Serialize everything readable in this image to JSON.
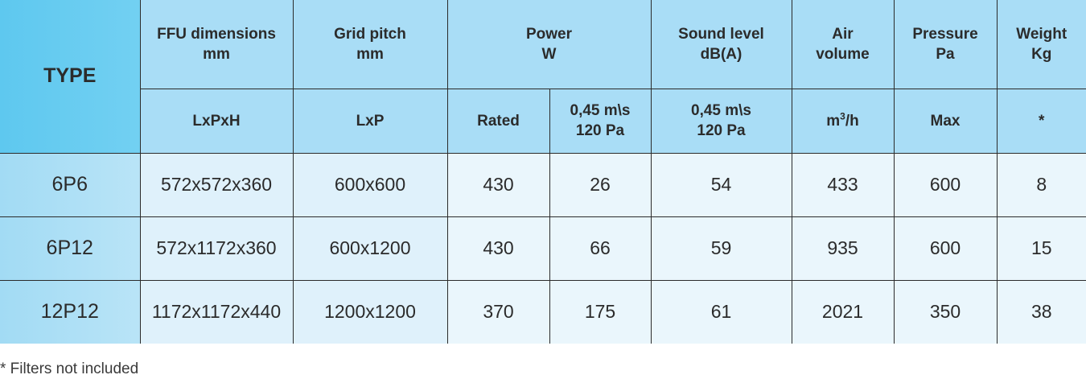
{
  "header": {
    "type_label": "TYPE",
    "dimensions": {
      "line1": "FFU dimensions",
      "line2": "mm"
    },
    "grid_pitch": {
      "line1": "Grid pitch",
      "line2": "mm"
    },
    "power": {
      "line1": "Power",
      "line2": "W"
    },
    "sound": {
      "line1": "Sound level",
      "line2": "dB(A)"
    },
    "air": {
      "line1": "Air",
      "line2": "volume"
    },
    "pressure": {
      "line1": "Pressure",
      "line2": "Pa"
    },
    "weight": {
      "line1": "Weight",
      "line2": "Kg"
    }
  },
  "subheader": {
    "dimensions": "LxPxH",
    "grid_pitch": "LxP",
    "power_rated": "Rated",
    "power_cond_line1": "0,45 m\\s",
    "power_cond_line2": "120 Pa",
    "sound_cond_line1": "0,45 m\\s",
    "sound_cond_line2": "120 Pa",
    "air_unit_base": "m",
    "air_unit_sup": "3",
    "air_unit_tail": "/h",
    "pressure": "Max",
    "weight": "*"
  },
  "rows": [
    {
      "type": "6P6",
      "dimensions": "572x572x360",
      "grid": "600x600",
      "rated": "430",
      "power_at": "26",
      "sound": "54",
      "air": "433",
      "pressure": "600",
      "weight": "8"
    },
    {
      "type": "6P12",
      "dimensions": "572x1172x360",
      "grid": "600x1200",
      "rated": "430",
      "power_at": "66",
      "sound": "59",
      "air": "935",
      "pressure": "600",
      "weight": "15"
    },
    {
      "type": "12P12",
      "dimensions": "1172x1172x440",
      "grid": "1200x1200",
      "rated": "370",
      "power_at": "175",
      "sound": "61",
      "air": "2021",
      "pressure": "350",
      "weight": "38"
    }
  ],
  "footnote": "* Filters not included"
}
